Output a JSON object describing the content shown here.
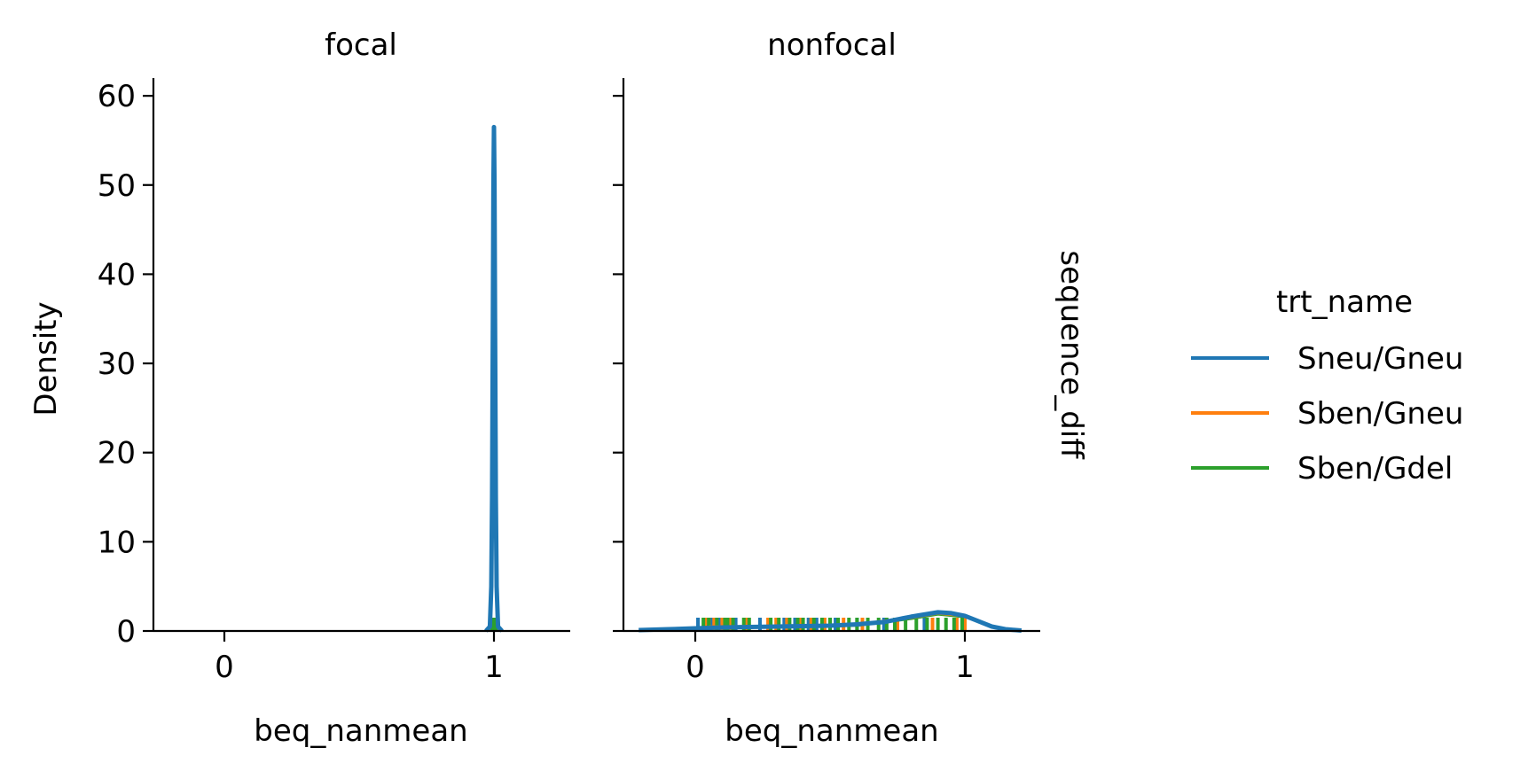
{
  "chart_data": {
    "type": "line",
    "panels": [
      {
        "title": "focal",
        "xlabel": "beq_nanmean",
        "ylabel": "Density",
        "xticks": [
          "0",
          "1"
        ],
        "yticks": [
          "0",
          "10",
          "20",
          "30",
          "40",
          "50",
          "60"
        ],
        "kde": [
          {
            "name": "Sneu/Gneu",
            "x": [
              0.97,
              0.985,
              0.99,
              0.993,
              0.996,
              0.998,
              1.0,
              1.002,
              1.004,
              1.007,
              1.01,
              1.015,
              1.03
            ],
            "y": [
              0,
              0.5,
              5,
              15,
              35,
              50,
              56.5,
              50,
              35,
              15,
              5,
              0.5,
              0
            ]
          },
          {
            "name": "Sben/Gdel",
            "x": [
              0.99,
              1.0,
              1.01
            ],
            "y": [
              0,
              1.2,
              0
            ]
          }
        ],
        "rugs": [
          {
            "name": "Sneu/Gneu",
            "x": [
              1.0
            ]
          },
          {
            "name": "Sben/Gdel",
            "x": [
              1.0
            ]
          }
        ]
      },
      {
        "title": "nonfocal",
        "xlabel": "beq_nanmean",
        "ylabel": "",
        "xticks": [
          "0",
          "1"
        ],
        "yticks": [],
        "kde": [
          {
            "name": "Sneu/Gneu",
            "x": [
              -0.21,
              -0.1,
              0.0,
              0.1,
              0.2,
              0.3,
              0.4,
              0.5,
              0.6,
              0.7,
              0.8,
              0.9,
              0.95,
              1.0,
              1.05,
              1.1,
              1.15,
              1.21
            ],
            "y": [
              0.1,
              0.2,
              0.3,
              0.4,
              0.45,
              0.5,
              0.55,
              0.6,
              0.75,
              1.0,
              1.6,
              2.1,
              2.0,
              1.7,
              1.1,
              0.5,
              0.2,
              0.05
            ]
          },
          {
            "name": "Sben/Gneu",
            "x": [
              0.05,
              0.2,
              0.4,
              0.6,
              0.8,
              0.9,
              1.0
            ],
            "y": [
              0.45,
              0.5,
              0.55,
              0.7,
              1.5,
              2.0,
              1.7
            ]
          },
          {
            "name": "Sben/Gdel",
            "x": [
              0.05,
              0.2,
              0.4,
              0.6,
              0.8,
              0.9,
              1.0
            ],
            "y": [
              0.4,
              0.45,
              0.5,
              0.65,
              1.4,
              1.9,
              1.6
            ]
          }
        ],
        "rugs": [
          {
            "name": "Sneu/Gneu",
            "x": [
              0.01,
              0.06,
              0.09,
              0.15,
              0.24,
              0.33,
              0.37,
              0.42,
              0.45,
              0.52,
              0.6,
              0.7,
              0.85,
              0.99
            ]
          },
          {
            "name": "Sben/Gneu",
            "x": [
              0.04,
              0.05,
              0.07,
              0.1,
              0.13,
              0.19,
              0.27,
              0.3,
              0.34,
              0.39,
              0.43,
              0.48,
              0.55,
              0.62,
              0.75,
              0.88,
              0.97,
              1.0
            ]
          },
          {
            "name": "Sben/Gdel",
            "x": [
              0.03,
              0.05,
              0.08,
              0.11,
              0.12,
              0.14,
              0.18,
              0.2,
              0.28,
              0.31,
              0.35,
              0.38,
              0.4,
              0.44,
              0.47,
              0.5,
              0.53,
              0.57,
              0.6,
              0.64,
              0.68,
              0.71,
              0.74,
              0.78,
              0.82,
              0.86,
              0.9,
              0.93,
              0.96,
              0.99
            ]
          }
        ]
      }
    ],
    "xlim": [
      -0.27,
      1.28
    ],
    "ylim": [
      0,
      62
    ],
    "row_label": "sequence_diff",
    "legend": {
      "title": "trt_name",
      "position": "right",
      "entries": [
        {
          "name": "Sneu/Gneu",
          "color": "#1f77b4"
        },
        {
          "name": "Sben/Gneu",
          "color": "#ff7f0e"
        },
        {
          "name": "Sben/Gdel",
          "color": "#2ca02c"
        }
      ]
    },
    "grid": false
  }
}
